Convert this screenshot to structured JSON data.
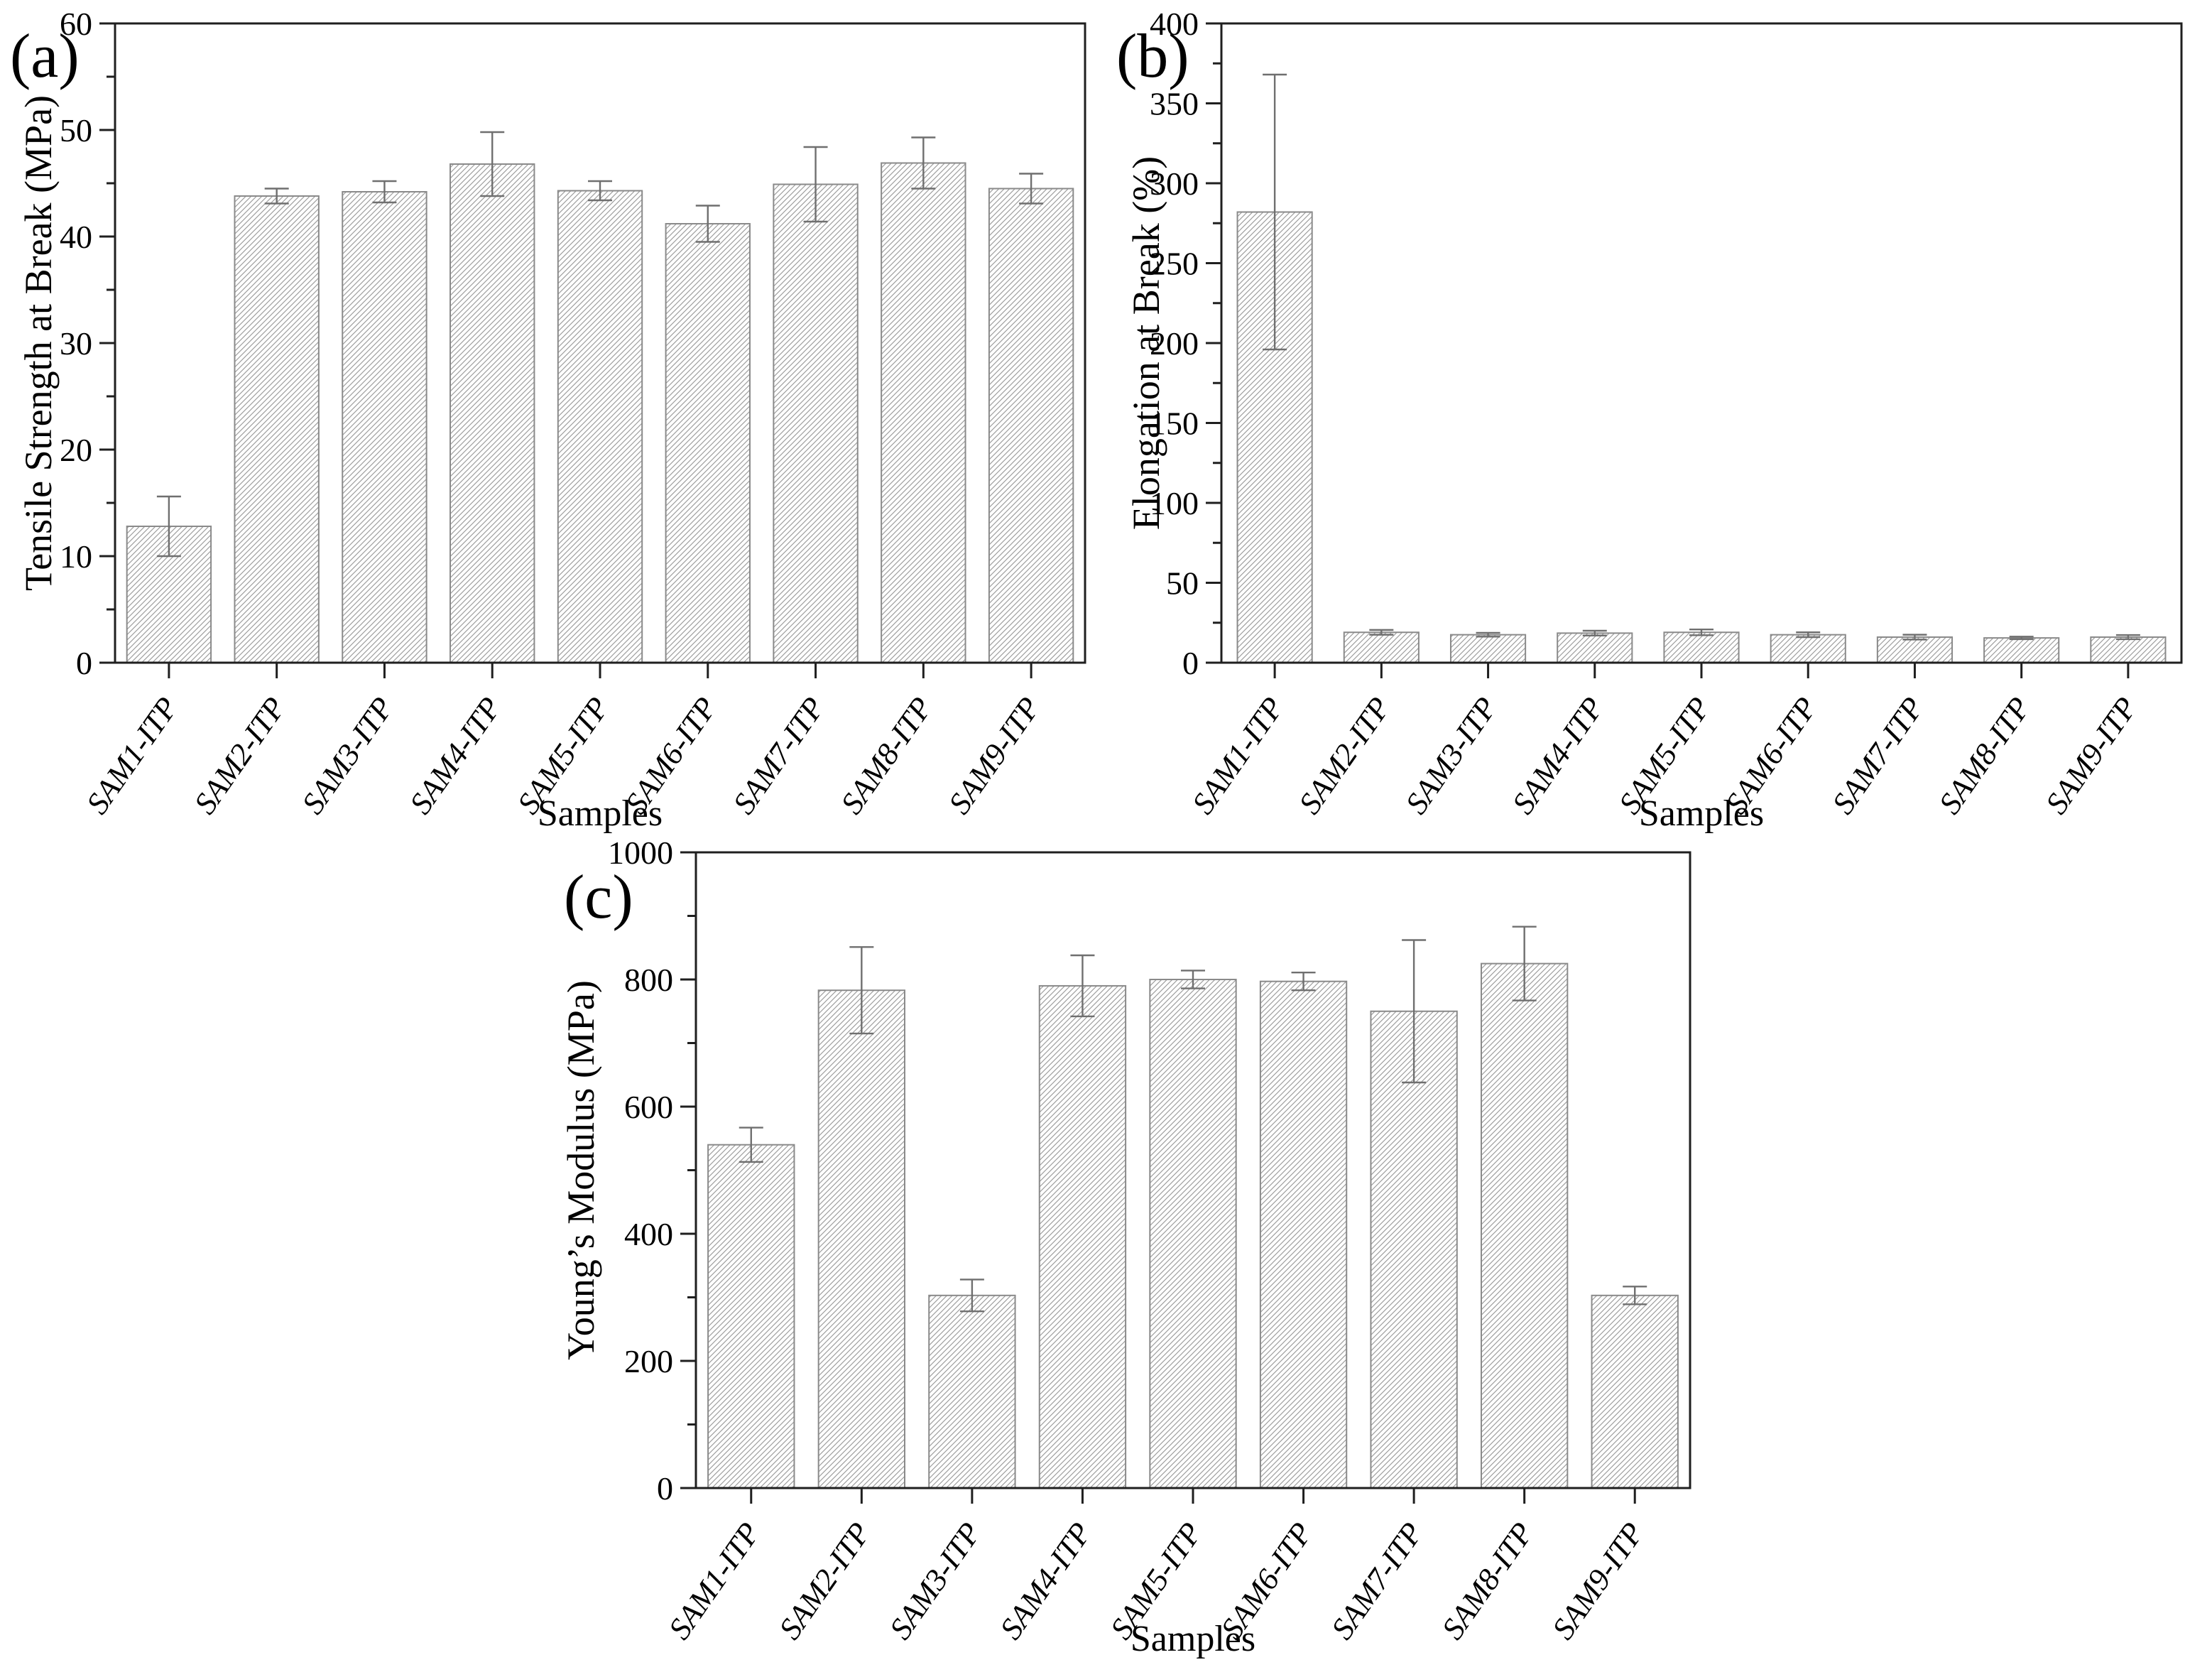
{
  "figure": {
    "background": "#ffffff",
    "description": "Three-panel bar chart figure of mechanical properties for samples SAM1-ITP through SAM9-ITP"
  },
  "colors": {
    "background": "#ffffff",
    "axis": "#1f1f1f",
    "text": "#000000",
    "bar_border": "#8a8a8a",
    "hatch_line": "#9e9e9e",
    "error_bar": "#6f6f6f"
  },
  "chart_data": [
    {
      "type": "bar",
      "panel_label": "(a)",
      "title": "",
      "xlabel": "Samples",
      "ylabel": "Tensile Strength at Break (MPa)",
      "categories": [
        "SAM1-ITP",
        "SAM2-ITP",
        "SAM3-ITP",
        "SAM4-ITP",
        "SAM5-ITP",
        "SAM6-ITP",
        "SAM7-ITP",
        "SAM8-ITP",
        "SAM9-ITP"
      ],
      "values": [
        12.8,
        43.8,
        44.2,
        46.8,
        44.3,
        41.2,
        44.9,
        46.9,
        44.5
      ],
      "error_bars": [
        2.8,
        0.7,
        1.0,
        3.0,
        0.9,
        1.7,
        3.5,
        2.4,
        1.4
      ],
      "ylim": [
        0,
        60
      ],
      "ytick_interval": 10,
      "yminor_interval": 5,
      "ytick_labels": [
        "0",
        "10",
        "20",
        "30",
        "40",
        "50",
        "60"
      ],
      "grid": false,
      "legend": "none",
      "bar_style": "white fill with gray diagonal hatch, error bars with caps"
    },
    {
      "type": "bar",
      "panel_label": "(b)",
      "title": "",
      "xlabel": "Samples",
      "ylabel": "Elongation at Break (%)",
      "categories": [
        "SAM1-ITP",
        "SAM2-ITP",
        "SAM3-ITP",
        "SAM4-ITP",
        "SAM5-ITP",
        "SAM6-ITP",
        "SAM7-ITP",
        "SAM8-ITP",
        "SAM9-ITP"
      ],
      "values": [
        282,
        19,
        17.5,
        18.5,
        19,
        17.5,
        16,
        15.5,
        16
      ],
      "error_bars": [
        86,
        1.5,
        1.2,
        1.5,
        1.8,
        1.5,
        1.5,
        0.8,
        1.3
      ],
      "ylim": [
        0,
        400
      ],
      "ytick_interval": 50,
      "yminor_interval": 25,
      "ytick_labels": [
        "0",
        "50",
        "100",
        "150",
        "200",
        "250",
        "300",
        "350",
        "400"
      ],
      "grid": false,
      "legend": "none",
      "bar_style": "white fill with gray diagonal hatch, error bars with caps"
    },
    {
      "type": "bar",
      "panel_label": "(c)",
      "title": "",
      "xlabel": "Samples",
      "ylabel": "Young’s Modulus (MPa)",
      "categories": [
        "SAM1-ITP",
        "SAM2-ITP",
        "SAM3-ITP",
        "SAM4-ITP",
        "SAM5-ITP",
        "SAM6-ITP",
        "SAM7-ITP",
        "SAM8-ITP",
        "SAM9-ITP"
      ],
      "values": [
        540,
        783,
        303,
        790,
        800,
        797,
        750,
        825,
        303
      ],
      "error_bars": [
        27,
        68,
        25,
        48,
        14,
        14,
        112,
        58,
        14
      ],
      "ylim": [
        0,
        1000
      ],
      "ytick_interval": 200,
      "yminor_interval": 100,
      "ytick_labels": [
        "0",
        "200",
        "400",
        "600",
        "800",
        "1000"
      ],
      "grid": false,
      "legend": "none",
      "bar_style": "white fill with gray diagonal hatch, error bars with caps"
    }
  ]
}
